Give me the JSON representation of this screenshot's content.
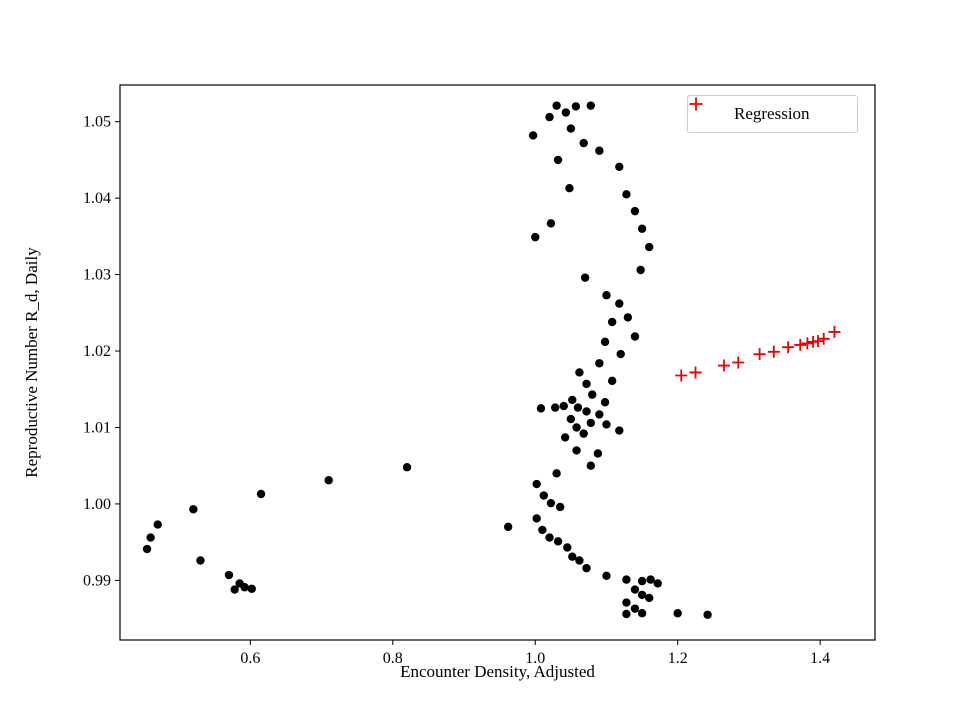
{
  "figure": {
    "background": "#ffffff"
  },
  "chart_data": {
    "type": "scatter",
    "title": "",
    "xlabel": "Encounter Density, Adjusted",
    "ylabel": "Reproductive Number R_d, Daily",
    "xlim": [
      0.417,
      1.477
    ],
    "ylim": [
      0.9822,
      1.0548
    ],
    "grid": false,
    "xticks": {
      "values": [
        0.6,
        0.8,
        1.0,
        1.2,
        1.4
      ],
      "labels": [
        "0.6",
        "0.8",
        "1.0",
        "1.2",
        "1.4"
      ]
    },
    "yticks": {
      "values": [
        0.99,
        1.0,
        1.01,
        1.02,
        1.03,
        1.04,
        1.05
      ],
      "labels": [
        "0.99",
        "1.00",
        "1.01",
        "1.02",
        "1.03",
        "1.04",
        "1.05"
      ]
    },
    "legend": {
      "position": "upper right",
      "entries": [
        {
          "label": "Regression",
          "marker": "plus",
          "color": "#ee0000"
        }
      ]
    },
    "series": [
      {
        "name": "observations",
        "marker": "circle",
        "color": "#000000",
        "points": [
          [
            1.03,
            1.0521
          ],
          [
            1.057,
            1.052
          ],
          [
            1.078,
            1.0521
          ],
          [
            1.043,
            1.0512
          ],
          [
            1.02,
            1.0506
          ],
          [
            1.05,
            1.0491
          ],
          [
            0.997,
            1.0482
          ],
          [
            1.068,
            1.0472
          ],
          [
            1.09,
            1.0462
          ],
          [
            1.032,
            1.045
          ],
          [
            1.118,
            1.0441
          ],
          [
            1.048,
            1.0413
          ],
          [
            1.128,
            1.0405
          ],
          [
            1.14,
            1.0383
          ],
          [
            1.022,
            1.0367
          ],
          [
            1.15,
            1.036
          ],
          [
            1.0,
            1.0349
          ],
          [
            1.16,
            1.0336
          ],
          [
            1.148,
            1.0306
          ],
          [
            1.07,
            1.0296
          ],
          [
            1.1,
            1.0273
          ],
          [
            1.118,
            1.0262
          ],
          [
            1.13,
            1.0244
          ],
          [
            1.108,
            1.0238
          ],
          [
            1.14,
            1.0219
          ],
          [
            1.098,
            1.0212
          ],
          [
            1.12,
            1.0196
          ],
          [
            1.09,
            1.0184
          ],
          [
            1.062,
            1.0172
          ],
          [
            1.108,
            1.0161
          ],
          [
            1.072,
            1.0157
          ],
          [
            1.08,
            1.0143
          ],
          [
            1.052,
            1.0136
          ],
          [
            1.098,
            1.0133
          ],
          [
            1.04,
            1.0128
          ],
          [
            1.06,
            1.0126
          ],
          [
            1.028,
            1.0126
          ],
          [
            1.008,
            1.0125
          ],
          [
            1.072,
            1.0121
          ],
          [
            1.09,
            1.0117
          ],
          [
            1.05,
            1.0111
          ],
          [
            1.078,
            1.0106
          ],
          [
            1.1,
            1.0104
          ],
          [
            1.058,
            1.01
          ],
          [
            1.118,
            1.0096
          ],
          [
            1.068,
            1.0092
          ],
          [
            1.042,
            1.0087
          ],
          [
            1.058,
            1.007
          ],
          [
            1.088,
            1.0066
          ],
          [
            1.078,
            1.005
          ],
          [
            1.03,
            1.004
          ],
          [
            1.002,
            1.0026
          ],
          [
            1.012,
            1.0011
          ],
          [
            1.022,
            1.0001
          ],
          [
            1.035,
            0.9996
          ],
          [
            1.002,
            0.9981
          ],
          [
            0.962,
            0.997
          ],
          [
            1.01,
            0.9966
          ],
          [
            1.02,
            0.9956
          ],
          [
            1.032,
            0.9951
          ],
          [
            1.045,
            0.9943
          ],
          [
            1.052,
            0.9931
          ],
          [
            1.062,
            0.9926
          ],
          [
            1.072,
            0.9916
          ],
          [
            1.1,
            0.9906
          ],
          [
            1.128,
            0.9901
          ],
          [
            1.15,
            0.9899
          ],
          [
            1.162,
            0.9901
          ],
          [
            1.172,
            0.9896
          ],
          [
            1.14,
            0.9888
          ],
          [
            1.15,
            0.9881
          ],
          [
            1.16,
            0.9877
          ],
          [
            1.128,
            0.9871
          ],
          [
            1.14,
            0.9863
          ],
          [
            1.15,
            0.9857
          ],
          [
            1.128,
            0.9856
          ],
          [
            1.2,
            0.9857
          ],
          [
            1.242,
            0.9855
          ],
          [
            0.46,
            0.9956
          ],
          [
            0.455,
            0.9941
          ],
          [
            0.47,
            0.9973
          ],
          [
            0.53,
            0.9926
          ],
          [
            0.52,
            0.9993
          ],
          [
            0.57,
            0.9907
          ],
          [
            0.585,
            0.9896
          ],
          [
            0.578,
            0.9888
          ],
          [
            0.592,
            0.9891
          ],
          [
            0.602,
            0.9889
          ],
          [
            0.615,
            1.0013
          ],
          [
            0.71,
            1.0031
          ],
          [
            0.82,
            1.0048
          ]
        ]
      },
      {
        "name": "Regression",
        "marker": "plus",
        "color": "#ee0000",
        "points": [
          [
            1.205,
            1.0168
          ],
          [
            1.225,
            1.0172
          ],
          [
            1.265,
            1.0181
          ],
          [
            1.285,
            1.0185
          ],
          [
            1.315,
            1.0196
          ],
          [
            1.335,
            1.0199
          ],
          [
            1.355,
            1.0205
          ],
          [
            1.372,
            1.0208
          ],
          [
            1.382,
            1.021
          ],
          [
            1.39,
            1.0212
          ],
          [
            1.397,
            1.0213
          ],
          [
            1.405,
            1.0216
          ],
          [
            1.42,
            1.0225
          ]
        ]
      }
    ]
  }
}
